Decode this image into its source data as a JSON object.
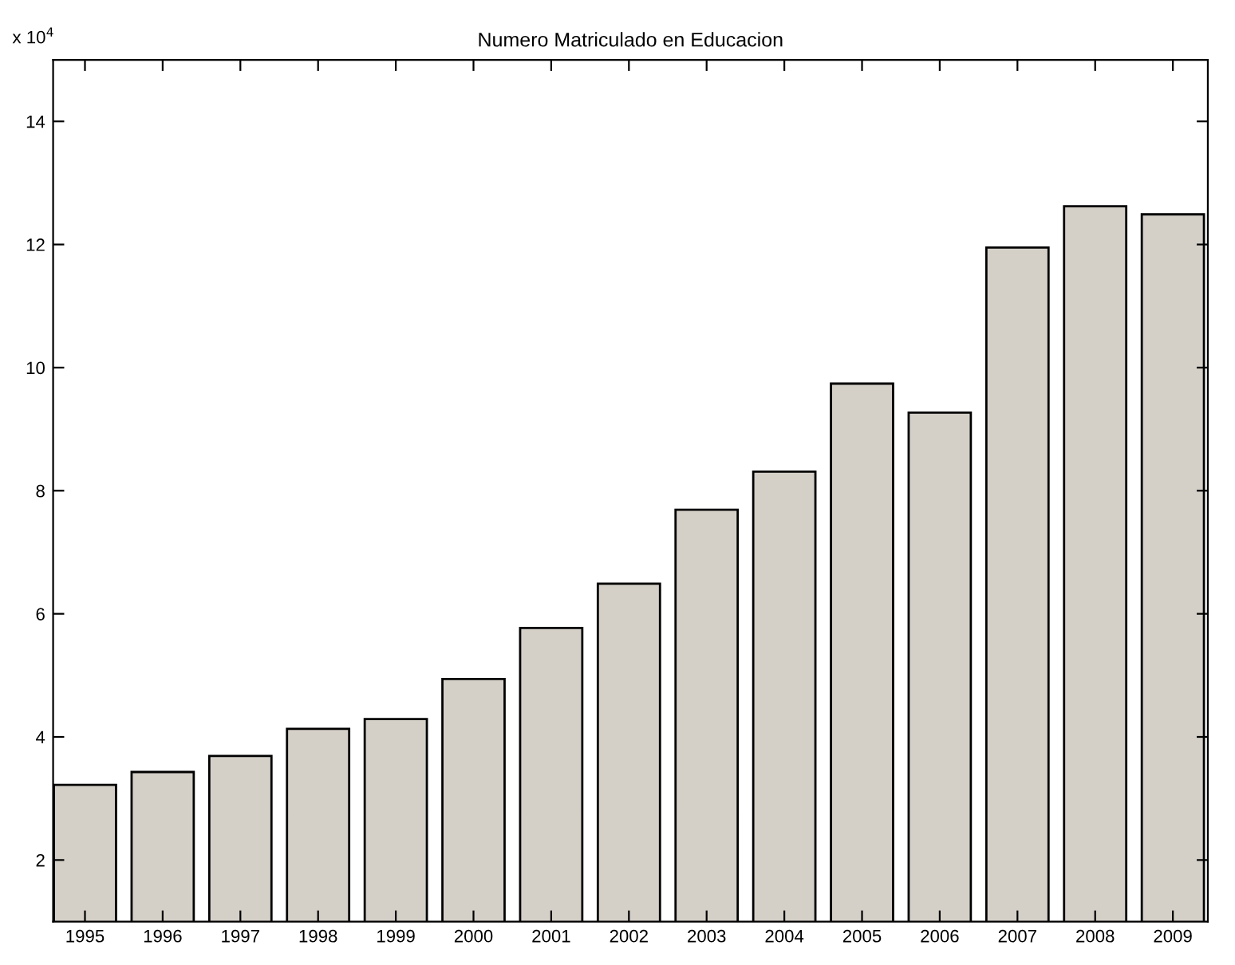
{
  "chart_data": {
    "type": "bar",
    "title": "Numero Matriculado en Educacion",
    "categories": [
      "1995",
      "1996",
      "1997",
      "1998",
      "1999",
      "2000",
      "2001",
      "2002",
      "2003",
      "2004",
      "2005",
      "2006",
      "2007",
      "2008",
      "2009"
    ],
    "values": [
      3.22,
      3.43,
      3.69,
      4.13,
      4.29,
      4.94,
      5.77,
      6.49,
      7.69,
      8.31,
      9.74,
      9.27,
      11.95,
      12.62,
      12.49
    ],
    "color": "#d4d0c8",
    "ylim": [
      1,
      15
    ],
    "yticks": [
      2,
      4,
      6,
      8,
      10,
      12,
      14
    ],
    "annotations": [
      "x 10$^{4}$"
    ],
    "grid": false,
    "legend": false
  }
}
